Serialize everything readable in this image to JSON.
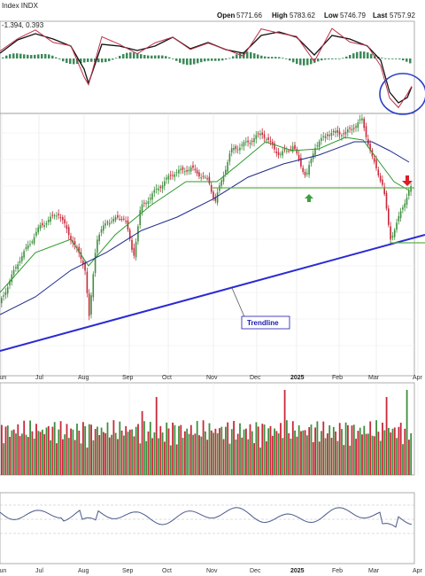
{
  "header": {
    "symbol_text": "Index INDX",
    "macd_values_text": "-1.394, 0.393",
    "open_label": "Open",
    "open_value": "5771.66",
    "high_label": "High",
    "high_value": "5783.62",
    "low_label": "Low",
    "low_value": "5746.79",
    "last_label": "Last",
    "last_value": "5757.92"
  },
  "annotations": {
    "trendline_label": "Trendline"
  },
  "colors": {
    "up": "#3f8f3f",
    "down": "#c8283a",
    "sma_fast": "#2c9a2c",
    "sma_slow": "#1e2a8a",
    "trendline": "#2a2ad6",
    "support": "#5fb04a",
    "annotation_circle": "#2a3fc8",
    "macd_line": "#111111",
    "macd_signal": "#c0304a",
    "macd_hist": "#3c8a5a",
    "rsi_line": "#4a5a8a"
  },
  "chart_data": {
    "type": "candlestick",
    "x_axis_labels": [
      "Jun",
      "Jul",
      "Aug",
      "Sep",
      "Oct",
      "Nov",
      "Dec",
      "2025",
      "Feb",
      "Mar",
      "Apr"
    ],
    "x_axis_label_bold": "2025",
    "panels": [
      "MACD",
      "Price",
      "Volume",
      "RSI"
    ],
    "last_bar": {
      "open": 5771.66,
      "high": 5783.62,
      "low": 5746.79,
      "close": 5757.92
    },
    "grid": true
  }
}
